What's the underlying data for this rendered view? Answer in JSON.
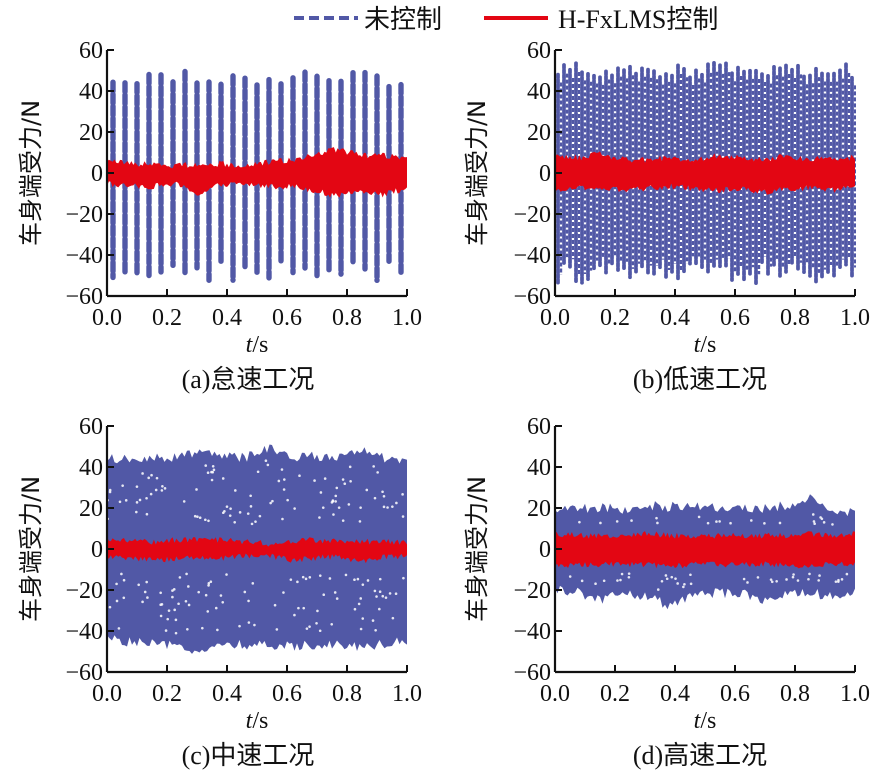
{
  "colors": {
    "uncontrolled": "#5158a6",
    "controlled": "#e30613",
    "axis": "#111111"
  },
  "legend": {
    "items": [
      {
        "label": "未控制",
        "style": "dashed",
        "color": "#5158a6"
      },
      {
        "label": "H-FxLMS控制",
        "style": "solid",
        "color": "#e30613"
      }
    ],
    "placement": "top-center"
  },
  "chart_data": [
    {
      "type": "line",
      "caption": "(a)怠速工况",
      "xlabel_italic": "t",
      "xlabel_unit": "/s",
      "ylabel": "车身端受力/N",
      "xlim": [
        0.0,
        1.0
      ],
      "ylim": [
        -60,
        60
      ],
      "x_ticks": [
        "0.0",
        "0.2",
        "0.4",
        "0.6",
        "0.8",
        "1.0"
      ],
      "y_ticks": [
        "60",
        "40",
        "20",
        "0",
        "−20",
        "−40",
        "−60"
      ],
      "grid": false,
      "series": [
        {
          "name": "未控制",
          "pattern": "periodic-dashed",
          "cycles": 25,
          "amplitude_max": 50,
          "amplitude_min": -53,
          "mean": 0
        },
        {
          "name": "H-FxLMS控制",
          "pattern": "noisy-band",
          "upper_envelope": [
            7,
            6,
            6,
            5,
            6,
            6,
            5,
            7,
            8,
            11,
            13,
            10,
            10,
            9
          ],
          "lower_envelope": [
            -7,
            -8,
            -8,
            -7,
            -12,
            -7,
            -7,
            -8,
            -8,
            -10,
            -13,
            -10,
            -12,
            -9
          ],
          "x": [
            0,
            0.08,
            0.15,
            0.23,
            0.31,
            0.38,
            0.46,
            0.54,
            0.62,
            0.69,
            0.77,
            0.85,
            0.92,
            1.0
          ]
        }
      ]
    },
    {
      "type": "line",
      "caption": "(b)低速工况",
      "xlabel_italic": "t",
      "xlabel_unit": "/s",
      "ylabel": "车身端受力/N",
      "xlim": [
        0.0,
        1.0
      ],
      "ylim": [
        -60,
        60
      ],
      "x_ticks": [
        "0.0",
        "0.2",
        "0.4",
        "0.6",
        "0.8",
        "1.0"
      ],
      "y_ticks": [
        "60",
        "40",
        "20",
        "0",
        "−20",
        "−40",
        "−60"
      ],
      "grid": false,
      "series": [
        {
          "name": "未控制",
          "pattern": "periodic-dense",
          "cycles": 50,
          "amplitude_max": 54,
          "amplitude_min": -54,
          "mean": 0
        },
        {
          "name": "H-FxLMS控制",
          "pattern": "noisy-band",
          "upper_envelope": [
            10,
            9,
            11,
            8,
            8,
            9,
            8,
            10,
            9,
            8,
            10,
            8,
            9,
            9
          ],
          "lower_envelope": [
            -10,
            -9,
            -9,
            -10,
            -9,
            -8,
            -9,
            -10,
            -9,
            -11,
            -9,
            -9,
            -10,
            -8
          ],
          "x": [
            0,
            0.08,
            0.15,
            0.23,
            0.31,
            0.38,
            0.46,
            0.54,
            0.62,
            0.69,
            0.77,
            0.85,
            0.92,
            1.0
          ]
        }
      ]
    },
    {
      "type": "line",
      "caption": "(c)中速工况",
      "xlabel_italic": "t",
      "xlabel_unit": "/s",
      "ylabel": "车身端受力/N",
      "xlim": [
        0.0,
        1.0
      ],
      "ylim": [
        -60,
        60
      ],
      "x_ticks": [
        "0.0",
        "0.2",
        "0.4",
        "0.6",
        "0.8",
        "1.0"
      ],
      "y_ticks": [
        "60",
        "40",
        "20",
        "0",
        "−20",
        "−40",
        "−60"
      ],
      "grid": false,
      "series": [
        {
          "name": "未控制",
          "pattern": "dense-band",
          "upper_envelope": [
            47,
            46,
            48,
            47,
            49,
            48,
            47,
            52,
            47,
            48,
            47,
            52,
            47,
            46
          ],
          "lower_envelope": [
            -46,
            -48,
            -49,
            -50,
            -52,
            -50,
            -49,
            -50,
            -50,
            -49,
            -49,
            -50,
            -49,
            -47
          ],
          "x": [
            0,
            0.08,
            0.15,
            0.23,
            0.31,
            0.38,
            0.46,
            0.54,
            0.62,
            0.69,
            0.77,
            0.85,
            0.92,
            1.0
          ]
        },
        {
          "name": "H-FxLMS控制",
          "pattern": "noisy-band",
          "upper_envelope": [
            6,
            6,
            5,
            6,
            6,
            6,
            5,
            4,
            5,
            6,
            5,
            5,
            5,
            5
          ],
          "lower_envelope": [
            -6,
            -6,
            -7,
            -6,
            -6,
            -6,
            -5,
            -5,
            -7,
            -6,
            -5,
            -8,
            -5,
            -5
          ],
          "x": [
            0,
            0.08,
            0.15,
            0.23,
            0.31,
            0.38,
            0.46,
            0.54,
            0.62,
            0.69,
            0.77,
            0.85,
            0.92,
            1.0
          ]
        }
      ]
    },
    {
      "type": "line",
      "caption": "(d)高速工况",
      "xlabel_italic": "t",
      "xlabel_unit": "/s",
      "ylabel": "车身端受力/N",
      "xlim": [
        0.0,
        1.0
      ],
      "ylim": [
        -60,
        60
      ],
      "x_ticks": [
        "0.0",
        "0.2",
        "0.4",
        "0.6",
        "0.8",
        "1.0"
      ],
      "y_ticks": [
        "60",
        "40",
        "20",
        "0",
        "−20",
        "−40",
        "−60"
      ],
      "grid": false,
      "series": [
        {
          "name": "未控制",
          "pattern": "dense-band",
          "upper_envelope": [
            23,
            22,
            23,
            22,
            24,
            23,
            24,
            23,
            22,
            22,
            24,
            27,
            21,
            20
          ],
          "lower_envelope": [
            -22,
            -24,
            -27,
            -24,
            -26,
            -30,
            -25,
            -24,
            -24,
            -27,
            -25,
            -24,
            -25,
            -24
          ],
          "x": [
            0,
            0.08,
            0.15,
            0.23,
            0.31,
            0.38,
            0.46,
            0.54,
            0.62,
            0.69,
            0.77,
            0.85,
            0.92,
            1.0
          ]
        },
        {
          "name": "H-FxLMS控制",
          "pattern": "noisy-band",
          "upper_envelope": [
            9,
            8,
            8,
            8,
            9,
            8,
            8,
            8,
            8,
            8,
            8,
            9,
            8,
            9
          ],
          "lower_envelope": [
            -10,
            -9,
            -9,
            -9,
            -9,
            -10,
            -9,
            -9,
            -9,
            -9,
            -9,
            -10,
            -9,
            -9
          ],
          "x": [
            0,
            0.08,
            0.15,
            0.23,
            0.31,
            0.38,
            0.46,
            0.54,
            0.62,
            0.69,
            0.77,
            0.85,
            0.92,
            1.0
          ]
        }
      ]
    }
  ]
}
